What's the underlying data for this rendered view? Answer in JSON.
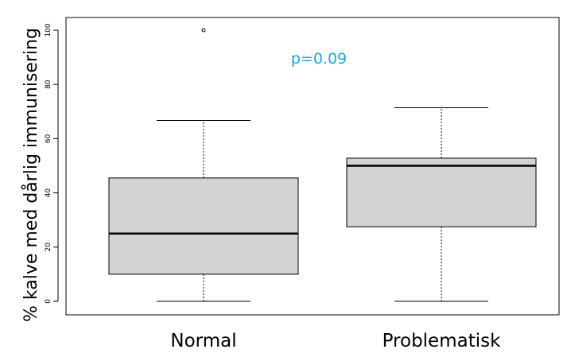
{
  "chart_data": {
    "type": "box",
    "ylabel": "% kalve med dårlig immunisering",
    "xlabel": "",
    "ylim": [
      0,
      100
    ],
    "yticks": [
      "0",
      "20",
      "40",
      "60",
      "80",
      "100"
    ],
    "categories": [
      "Normal",
      "Problematisk"
    ],
    "boxes": [
      {
        "label": "Normal",
        "min": 0,
        "q1": 10,
        "median": 25,
        "q3": 45.5,
        "max": 66.7,
        "outliers": [
          100
        ]
      },
      {
        "label": "Problematisk",
        "min": 0,
        "q1": 27.5,
        "median": 50,
        "q3": 52.8,
        "max": 71.4,
        "outliers": []
      }
    ],
    "annotation": "p=0.09",
    "grid": false
  },
  "colors": {
    "box_fill": "#d3d3d3",
    "line": "#000000",
    "annotation": "#1aa7e0"
  }
}
